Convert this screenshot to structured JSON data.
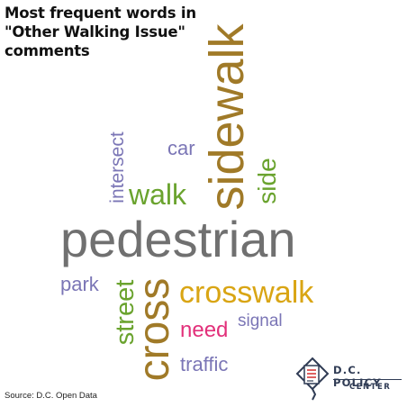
{
  "title": {
    "line1": "Most frequent words in",
    "line2": "\"Other Walking Issue\"",
    "line3": "comments"
  },
  "words": {
    "pedestrian": "pedestrian",
    "sidewalk": "sidewalk",
    "crosswalk": "crosswalk",
    "cross": "cross",
    "street": "street",
    "walk": "walk",
    "intersect": "intersect",
    "side": "side",
    "car": "car",
    "park": "park",
    "need": "need",
    "signal": "signal",
    "traffic": "traffic"
  },
  "colors": {
    "gray": "#707070",
    "brown": "#a07a28",
    "gold": "#d9a514",
    "green": "#6aa32e",
    "purple": "#7b76b6",
    "pink": "#e2307a"
  },
  "source": "Source: D.C. Open Data",
  "logo": {
    "line1": "D.C. POLICY",
    "line2": "CENTER"
  }
}
